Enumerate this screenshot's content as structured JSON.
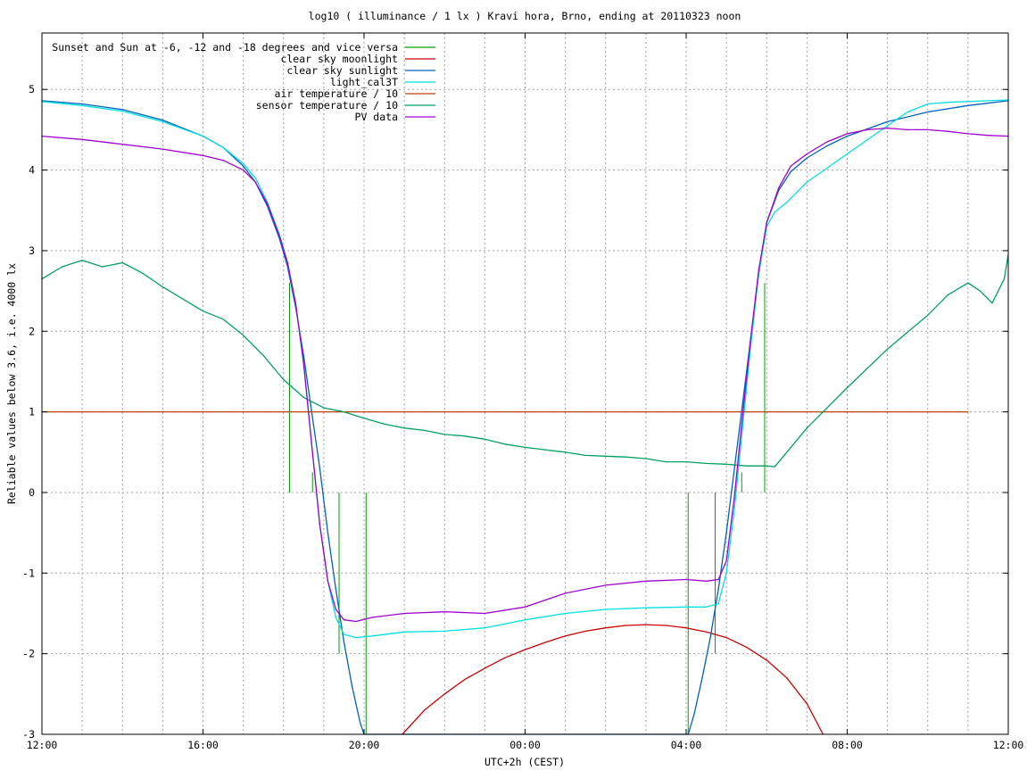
{
  "chart_data": {
    "type": "line",
    "title": "log10 ( illuminance / 1 lx ) Kravi hora, Brno, ending at 20110323 noon",
    "xlabel": "UTC+2h (CEST)",
    "ylabel": "Reliable values below 3.6, i.e. 4000 lx",
    "xlim": [
      12,
      36
    ],
    "ylim": [
      -3,
      5.7
    ],
    "x_ticks": [
      {
        "v": 12,
        "label": "12:00"
      },
      {
        "v": 16,
        "label": "16:00"
      },
      {
        "v": 20,
        "label": "20:00"
      },
      {
        "v": 24,
        "label": "00:00"
      },
      {
        "v": 28,
        "label": "04:00"
      },
      {
        "v": 32,
        "label": "08:00"
      },
      {
        "v": 36,
        "label": "12:00"
      }
    ],
    "x_grid_step_hours": 1,
    "y_ticks": [
      {
        "v": -3,
        "label": "-3"
      },
      {
        "v": -2,
        "label": "-2"
      },
      {
        "v": -1,
        "label": "-1"
      },
      {
        "v": 0,
        "label": "0"
      },
      {
        "v": 1,
        "label": "1"
      },
      {
        "v": 2,
        "label": "2"
      },
      {
        "v": 3,
        "label": "3"
      },
      {
        "v": 4,
        "label": "4"
      },
      {
        "v": 5,
        "label": "5"
      }
    ],
    "grid": true,
    "legend_position": "top-left",
    "series": [
      {
        "name": "Sunset and Sun at -6, -12 and -18 degrees and vice versa",
        "color": "#00a000",
        "kind": "spikes",
        "points": [
          {
            "x": 18.15,
            "y_from": 0,
            "y_to": 2.6
          },
          {
            "x": 18.72,
            "y_from": 0,
            "y_to": 0.25
          },
          {
            "x": 19.38,
            "y_from": 0,
            "y_to": -2.0
          },
          {
            "x": 20.05,
            "y_from": 0,
            "y_to": -3.0
          },
          {
            "x": 28.05,
            "y_from": 0,
            "y_to": -3.0
          },
          {
            "x": 28.72,
            "y_from": 0,
            "y_to": -2.0
          },
          {
            "x": 29.38,
            "y_from": 0,
            "y_to": 0.25
          },
          {
            "x": 29.95,
            "y_from": 0,
            "y_to": 2.6
          }
        ]
      },
      {
        "name": "clear sky moonlight",
        "color": "#cc0000",
        "x": [
          20.95,
          21.5,
          22.0,
          22.5,
          23.0,
          23.5,
          24.0,
          24.5,
          25.0,
          25.5,
          26.0,
          26.5,
          27.0,
          27.5,
          28.0,
          28.5,
          29.0,
          29.5,
          30.0,
          30.5,
          31.0,
          31.4
        ],
        "y": [
          -3.0,
          -2.7,
          -2.5,
          -2.32,
          -2.18,
          -2.05,
          -1.95,
          -1.86,
          -1.78,
          -1.72,
          -1.68,
          -1.65,
          -1.64,
          -1.65,
          -1.68,
          -1.73,
          -1.8,
          -1.92,
          -2.08,
          -2.3,
          -2.62,
          -3.0
        ]
      },
      {
        "name": "clear sky sunlight",
        "color": "#0060c0",
        "x": [
          12,
          13,
          14,
          15,
          16,
          16.5,
          17,
          17.3,
          17.6,
          17.9,
          18.1,
          18.3,
          18.5,
          18.7,
          18.9,
          19.1,
          19.3,
          19.5,
          19.7,
          19.9,
          20.0,
          28.05,
          28.2,
          28.4,
          28.6,
          28.8,
          29.0,
          29.2,
          29.4,
          29.6,
          29.8,
          30.0,
          30.3,
          30.6,
          31.0,
          31.5,
          32.0,
          33.0,
          34.0,
          35.0,
          36.0
        ],
        "y": [
          4.86,
          4.82,
          4.75,
          4.62,
          4.42,
          4.28,
          4.05,
          3.85,
          3.55,
          3.15,
          2.8,
          2.3,
          1.7,
          1.0,
          0.3,
          -0.5,
          -1.2,
          -1.85,
          -2.4,
          -2.85,
          -3.0,
          -3.0,
          -2.75,
          -2.3,
          -1.8,
          -1.2,
          -0.5,
          0.3,
          1.1,
          1.9,
          2.7,
          3.35,
          3.75,
          3.98,
          4.15,
          4.3,
          4.42,
          4.6,
          4.72,
          4.8,
          4.86
        ]
      },
      {
        "name": "light_cal3T",
        "color": "#00e0e0",
        "x": [
          12,
          13,
          14,
          15,
          16,
          16.5,
          17,
          17.3,
          17.6,
          17.9,
          18.1,
          18.3,
          18.5,
          18.7,
          18.9,
          19.1,
          19.3,
          19.5,
          19.8,
          20.2,
          21,
          22,
          23,
          24,
          25,
          26,
          27,
          28,
          28.5,
          28.8,
          29.0,
          29.2,
          29.4,
          29.6,
          29.8,
          30.0,
          30.2,
          30.5,
          31,
          32,
          33,
          33.5,
          34,
          34.5,
          35,
          35.5,
          36
        ],
        "y": [
          4.85,
          4.8,
          4.73,
          4.6,
          4.42,
          4.28,
          4.08,
          3.9,
          3.6,
          3.2,
          2.85,
          2.35,
          1.6,
          0.6,
          -0.4,
          -1.1,
          -1.55,
          -1.76,
          -1.8,
          -1.78,
          -1.73,
          -1.72,
          -1.68,
          -1.58,
          -1.5,
          -1.45,
          -1.43,
          -1.42,
          -1.42,
          -1.38,
          -1.0,
          -0.2,
          0.8,
          1.8,
          2.7,
          3.3,
          3.48,
          3.6,
          3.85,
          4.2,
          4.55,
          4.72,
          4.82,
          4.84,
          4.85,
          4.86,
          4.87
        ]
      },
      {
        "name": "air temperature / 10",
        "color": "#c04000",
        "x": [
          12,
          35.0
        ],
        "y": [
          1.0,
          1.0
        ]
      },
      {
        "name": "sensor temperature / 10",
        "color": "#00a060",
        "x": [
          12,
          12.5,
          13,
          13.5,
          14,
          14.5,
          15,
          15.5,
          16,
          16.5,
          17,
          17.5,
          18,
          18.5,
          19,
          19.5,
          20,
          20.5,
          21,
          21.5,
          22,
          22.5,
          23,
          23.5,
          24,
          24.5,
          25,
          25.5,
          26,
          26.5,
          27,
          27.5,
          28,
          28.5,
          29,
          29.5,
          30.0,
          30.2,
          31,
          32,
          33,
          34,
          34.5,
          35,
          35.3,
          35.6,
          35.9,
          36
        ],
        "y": [
          2.65,
          2.8,
          2.88,
          2.8,
          2.85,
          2.72,
          2.55,
          2.4,
          2.25,
          2.15,
          1.95,
          1.7,
          1.4,
          1.18,
          1.05,
          1.0,
          0.92,
          0.85,
          0.8,
          0.77,
          0.72,
          0.7,
          0.66,
          0.6,
          0.56,
          0.53,
          0.5,
          0.46,
          0.45,
          0.44,
          0.42,
          0.38,
          0.38,
          0.36,
          0.35,
          0.33,
          0.33,
          0.32,
          0.8,
          1.3,
          1.78,
          2.2,
          2.45,
          2.6,
          2.5,
          2.35,
          2.65,
          2.95
        ]
      },
      {
        "name": "PV data",
        "color": "#a000d0",
        "x": [
          12,
          13,
          14,
          15,
          16,
          16.5,
          17,
          17.3,
          17.6,
          17.9,
          18.1,
          18.3,
          18.5,
          18.7,
          18.9,
          19.1,
          19.3,
          19.5,
          19.8,
          20.2,
          21,
          22,
          23,
          24,
          25,
          26,
          27,
          28,
          28.5,
          28.8,
          29.0,
          29.2,
          29.4,
          29.6,
          29.8,
          30.0,
          30.3,
          30.6,
          31,
          31.5,
          32,
          32.5,
          33,
          33.5,
          34,
          34.5,
          35,
          35.5,
          36
        ],
        "y": [
          4.42,
          4.38,
          4.32,
          4.26,
          4.18,
          4.12,
          4.0,
          3.85,
          3.58,
          3.18,
          2.85,
          2.35,
          1.6,
          0.6,
          -0.4,
          -1.1,
          -1.45,
          -1.58,
          -1.6,
          -1.55,
          -1.5,
          -1.48,
          -1.5,
          -1.42,
          -1.25,
          -1.15,
          -1.1,
          -1.08,
          -1.1,
          -1.08,
          -0.85,
          -0.05,
          0.95,
          1.9,
          2.75,
          3.35,
          3.78,
          4.05,
          4.2,
          4.35,
          4.45,
          4.5,
          4.52,
          4.5,
          4.5,
          4.48,
          4.45,
          4.43,
          4.42
        ]
      }
    ]
  }
}
